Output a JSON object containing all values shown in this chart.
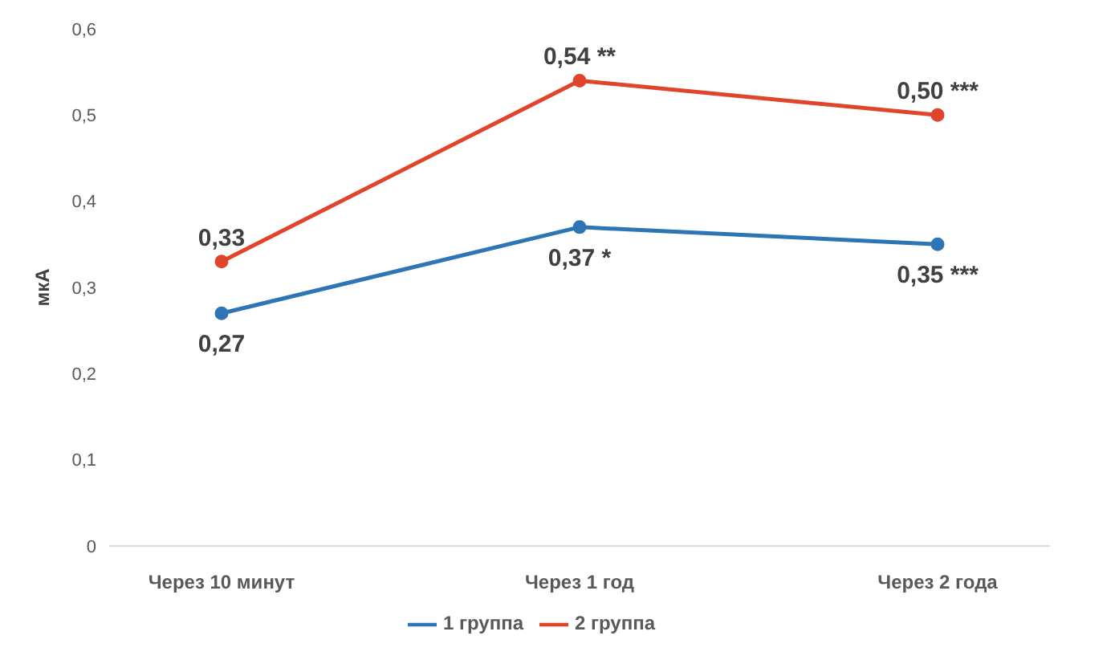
{
  "chart_data": {
    "type": "line",
    "ylabel": "мкА",
    "categories": [
      "Через 10 минут",
      "Через 1 год",
      "Через 2 года"
    ],
    "series": [
      {
        "name": "1 группа",
        "color": "#2e75b6",
        "values": [
          0.27,
          0.37,
          0.35
        ],
        "value_labels": [
          "0,27",
          "0,37 *",
          "0,35 ***"
        ]
      },
      {
        "name": "2 группа",
        "color": "#e0452c",
        "values": [
          0.33,
          0.54,
          0.5
        ],
        "value_labels": [
          "0,33",
          "0,54 **",
          "0,50 ***"
        ]
      }
    ],
    "ylim": [
      0,
      0.6
    ],
    "yticks": [
      0,
      {
        "value": 0.1,
        "label": "0,1"
      },
      {
        "value": 0.2,
        "label": "0,2"
      },
      {
        "value": 0.3,
        "label": "0,3"
      },
      {
        "value": 0.4,
        "label": "0,4"
      },
      {
        "value": 0.5,
        "label": "0,5"
      },
      {
        "value": 0.6,
        "label": "0,6"
      }
    ],
    "legend": "bottom",
    "marker": "circle",
    "grid": false,
    "line_style": "solid"
  }
}
